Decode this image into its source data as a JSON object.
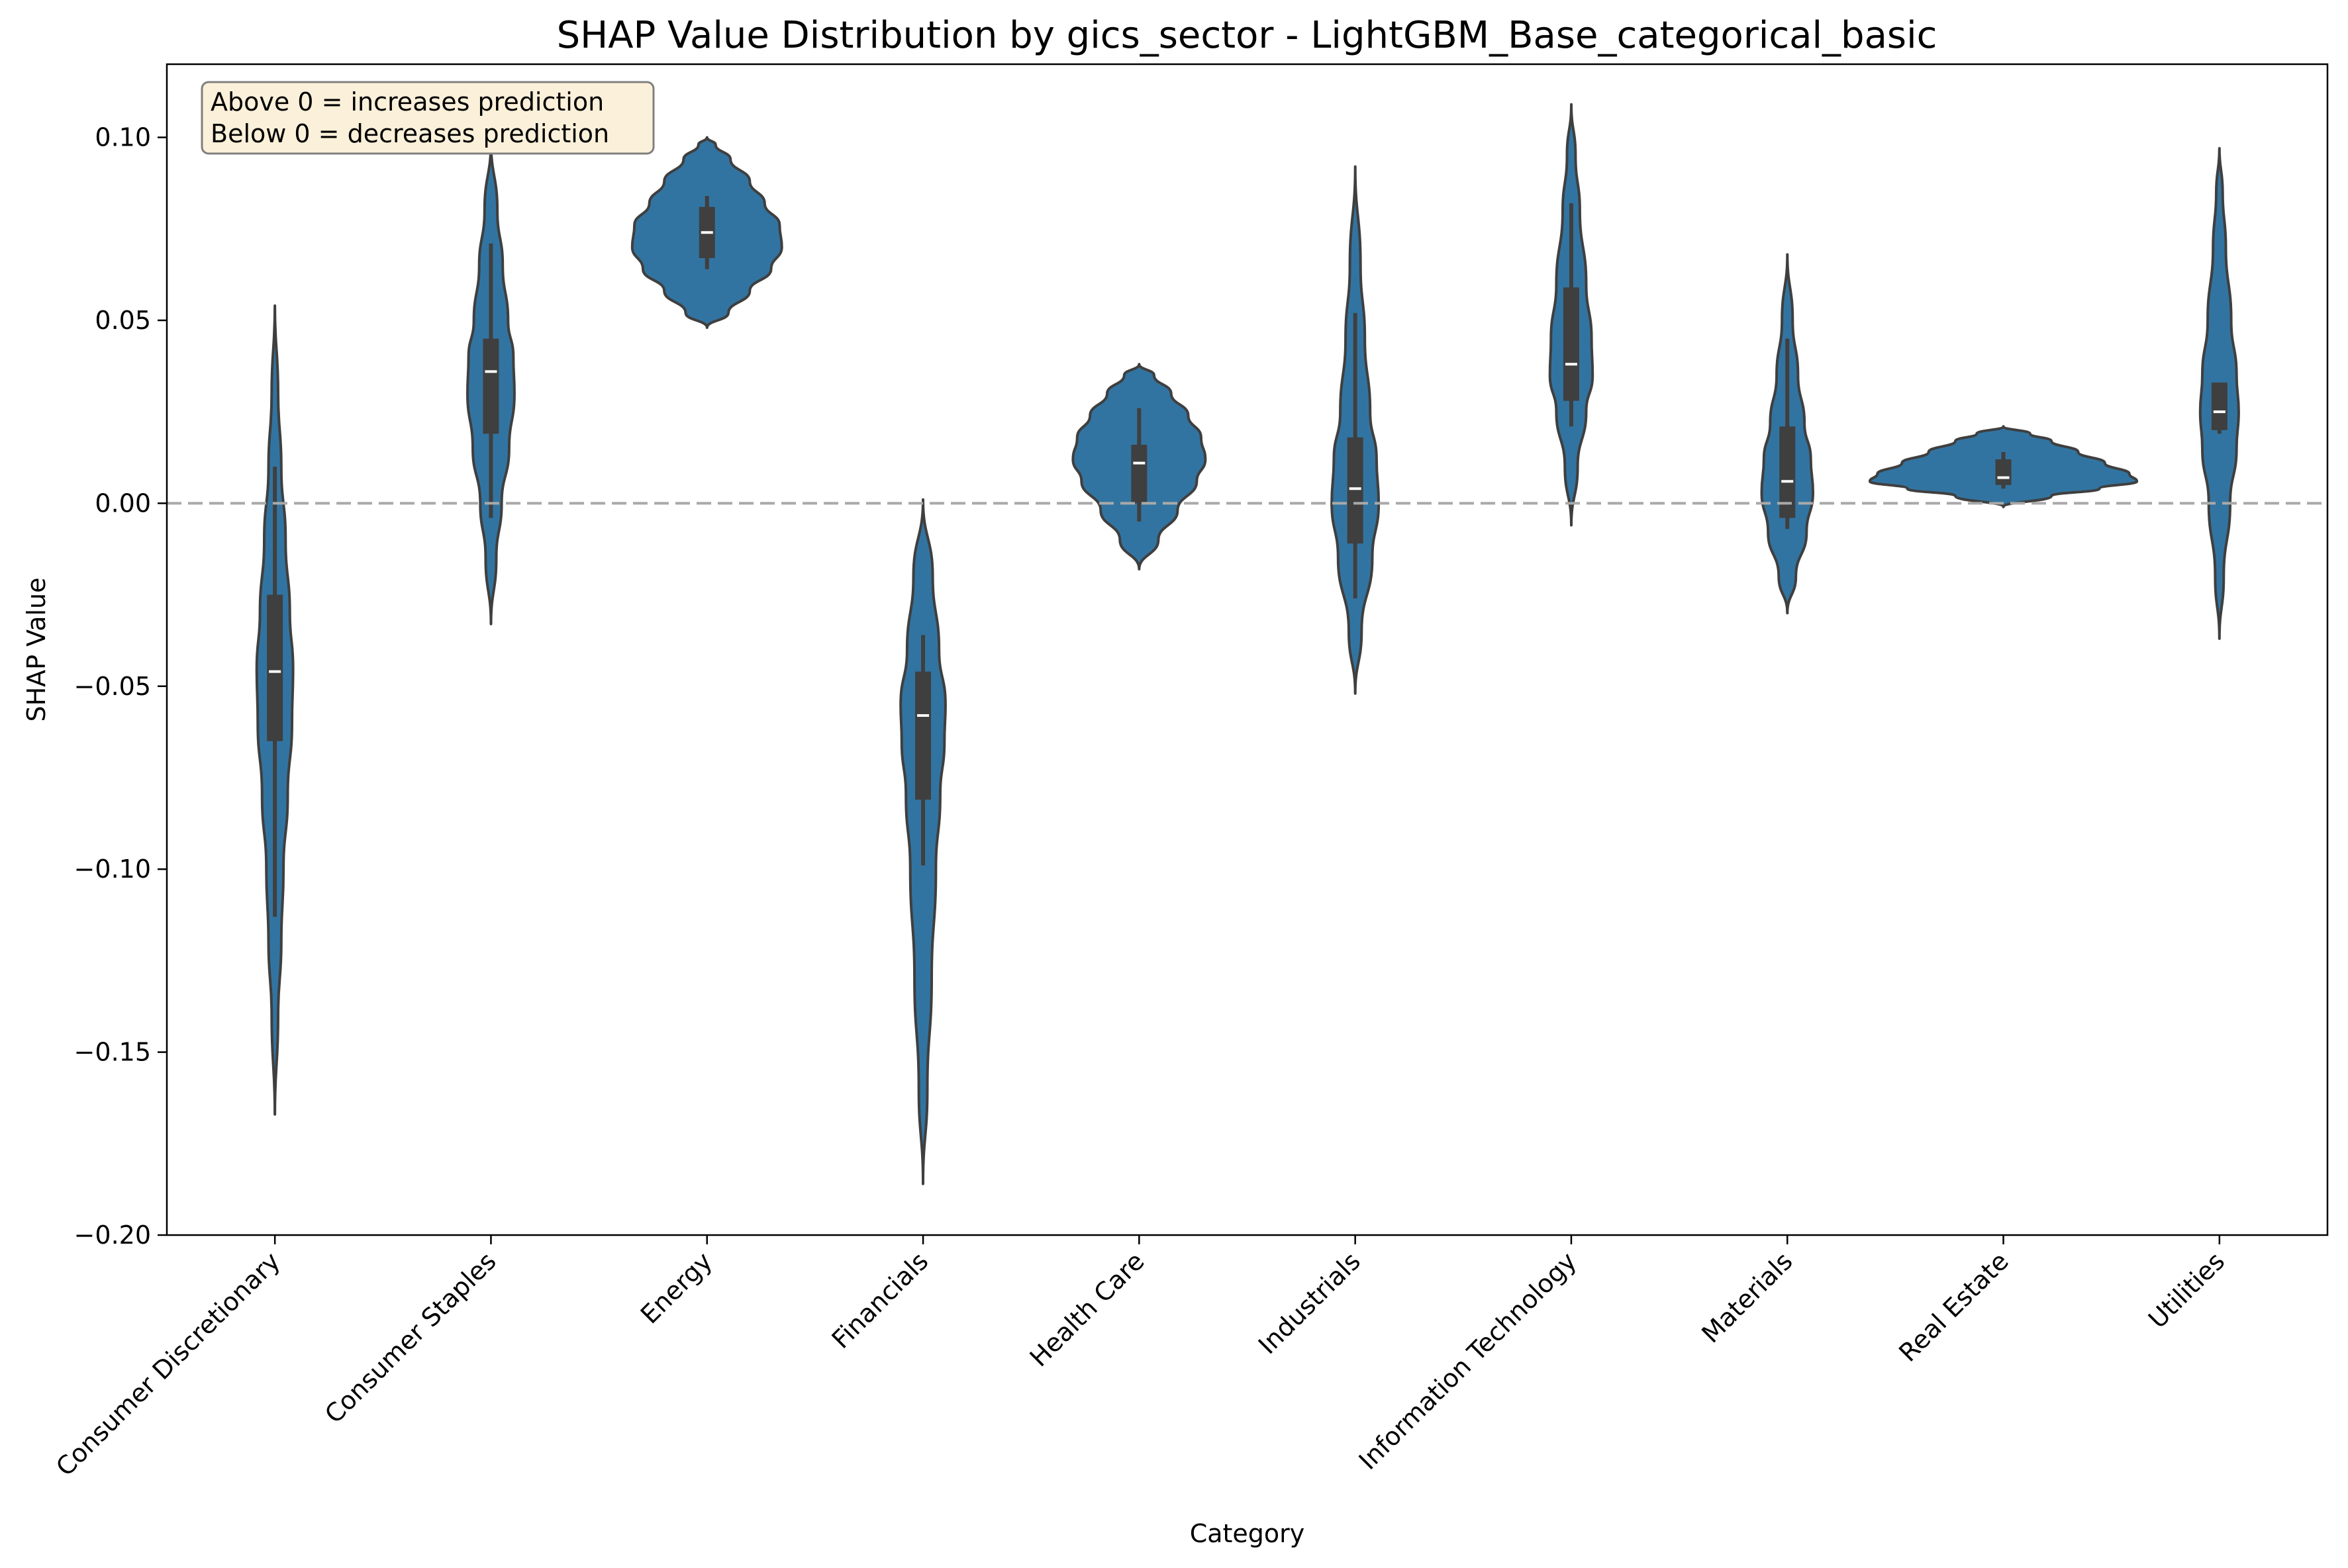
{
  "chart_data": {
    "type": "violin",
    "title": "SHAP Value Distribution by gics_sector - LightGBM_Base_categorical_basic",
    "xlabel": "Category",
    "ylabel": "SHAP Value",
    "ylim": [
      -0.2,
      0.12
    ],
    "yticks": [
      0.1,
      0.05,
      0.0,
      -0.05,
      -0.1,
      -0.15,
      -0.2
    ],
    "ytick_labels": [
      "0.10",
      "0.05",
      "0.00",
      "−0.05",
      "−0.10",
      "−0.15",
      "−0.20"
    ],
    "reference_line": 0.0,
    "grid": false,
    "colors": {
      "violin_fill": "#3274a1",
      "violin_edge": "#3f3f3f",
      "box": "#3f3f3f",
      "median": "#ffffff",
      "reference_line": "#a9a9a9",
      "annotation_bg": "#fbf0d9",
      "annotation_border": "#808080"
    },
    "annotation": {
      "lines": [
        "Above 0 = increases prediction",
        "Below 0 = decreases prediction"
      ],
      "location": "top-left"
    },
    "categories": [
      "Consumer Discretionary",
      "Consumer Staples",
      "Energy",
      "Financials",
      "Health Care",
      "Industrials",
      "Information Technology",
      "Materials",
      "Real Estate",
      "Utilities"
    ],
    "series": [
      {
        "category": "Consumer Discretionary",
        "min": -0.167,
        "max": 0.054,
        "whisker_low": -0.113,
        "whisker_high": 0.01,
        "q1": -0.065,
        "median": -0.046,
        "q3": -0.025,
        "density": [
          [
            -0.167,
            0.0
          ],
          [
            -0.14,
            0.003
          ],
          [
            -0.12,
            0.006
          ],
          [
            -0.1,
            0.008
          ],
          [
            -0.08,
            0.012
          ],
          [
            -0.06,
            0.016
          ],
          [
            -0.045,
            0.017
          ],
          [
            -0.03,
            0.014
          ],
          [
            -0.01,
            0.01
          ],
          [
            0.01,
            0.006
          ],
          [
            0.03,
            0.003
          ],
          [
            0.054,
            0.0
          ]
        ]
      },
      {
        "category": "Consumer Staples",
        "min": -0.033,
        "max": 0.099,
        "whisker_low": -0.004,
        "whisker_high": 0.071,
        "q1": 0.019,
        "median": 0.036,
        "q3": 0.045,
        "density": [
          [
            -0.033,
            0.0
          ],
          [
            -0.015,
            0.005
          ],
          [
            0.0,
            0.01
          ],
          [
            0.015,
            0.017
          ],
          [
            0.03,
            0.022
          ],
          [
            0.04,
            0.021
          ],
          [
            0.05,
            0.016
          ],
          [
            0.065,
            0.011
          ],
          [
            0.08,
            0.006
          ],
          [
            0.099,
            0.0
          ]
        ]
      },
      {
        "category": "Energy",
        "min": 0.048,
        "max": 0.1,
        "whisker_low": 0.064,
        "whisker_high": 0.084,
        "q1": 0.067,
        "median": 0.074,
        "q3": 0.081,
        "density": [
          [
            0.048,
            0.0
          ],
          [
            0.052,
            0.02
          ],
          [
            0.058,
            0.04
          ],
          [
            0.064,
            0.06
          ],
          [
            0.07,
            0.07
          ],
          [
            0.076,
            0.068
          ],
          [
            0.082,
            0.054
          ],
          [
            0.088,
            0.04
          ],
          [
            0.094,
            0.022
          ],
          [
            0.098,
            0.008
          ],
          [
            0.1,
            0.0
          ]
        ]
      },
      {
        "category": "Financials",
        "min": -0.186,
        "max": 0.001,
        "whisker_low": -0.099,
        "whisker_high": -0.036,
        "q1": -0.081,
        "median": -0.058,
        "q3": -0.046,
        "density": [
          [
            -0.186,
            0.0
          ],
          [
            -0.16,
            0.004
          ],
          [
            -0.13,
            0.008
          ],
          [
            -0.1,
            0.012
          ],
          [
            -0.08,
            0.016
          ],
          [
            -0.065,
            0.02
          ],
          [
            -0.055,
            0.021
          ],
          [
            -0.04,
            0.015
          ],
          [
            -0.02,
            0.009
          ],
          [
            0.001,
            0.0
          ]
        ]
      },
      {
        "category": "Health Care",
        "min": -0.018,
        "max": 0.038,
        "whisker_low": -0.005,
        "whisker_high": 0.026,
        "q1": 0.0,
        "median": 0.011,
        "q3": 0.016,
        "density": [
          [
            -0.018,
            0.0
          ],
          [
            -0.01,
            0.018
          ],
          [
            -0.002,
            0.036
          ],
          [
            0.006,
            0.054
          ],
          [
            0.012,
            0.062
          ],
          [
            0.018,
            0.058
          ],
          [
            0.024,
            0.046
          ],
          [
            0.03,
            0.03
          ],
          [
            0.035,
            0.014
          ],
          [
            0.038,
            0.0
          ]
        ]
      },
      {
        "category": "Industrials",
        "min": -0.052,
        "max": 0.092,
        "whisker_low": -0.026,
        "whisker_high": 0.052,
        "q1": -0.011,
        "median": 0.004,
        "q3": 0.018,
        "density": [
          [
            -0.052,
            0.0
          ],
          [
            -0.035,
            0.006
          ],
          [
            -0.015,
            0.016
          ],
          [
            0.0,
            0.022
          ],
          [
            0.012,
            0.02
          ],
          [
            0.025,
            0.014
          ],
          [
            0.045,
            0.009
          ],
          [
            0.065,
            0.005
          ],
          [
            0.092,
            0.0
          ]
        ]
      },
      {
        "category": "Information Technology",
        "min": -0.006,
        "max": 0.109,
        "whisker_low": 0.021,
        "whisker_high": 0.082,
        "q1": 0.028,
        "median": 0.038,
        "q3": 0.059,
        "density": [
          [
            -0.006,
            0.0
          ],
          [
            0.01,
            0.006
          ],
          [
            0.025,
            0.014
          ],
          [
            0.035,
            0.02
          ],
          [
            0.045,
            0.019
          ],
          [
            0.06,
            0.014
          ],
          [
            0.08,
            0.008
          ],
          [
            0.095,
            0.004
          ],
          [
            0.109,
            0.0
          ]
        ]
      },
      {
        "category": "Materials",
        "min": -0.03,
        "max": 0.068,
        "whisker_low": -0.007,
        "whisker_high": 0.045,
        "q1": -0.004,
        "median": 0.006,
        "q3": 0.021,
        "density": [
          [
            -0.03,
            0.0
          ],
          [
            -0.02,
            0.008
          ],
          [
            -0.008,
            0.018
          ],
          [
            0.003,
            0.024
          ],
          [
            0.012,
            0.022
          ],
          [
            0.022,
            0.016
          ],
          [
            0.035,
            0.01
          ],
          [
            0.05,
            0.005
          ],
          [
            0.068,
            0.0
          ]
        ]
      },
      {
        "category": "Real Estate",
        "min": -0.001,
        "max": 0.021,
        "whisker_low": 0.004,
        "whisker_high": 0.014,
        "q1": 0.005,
        "median": 0.007,
        "q3": 0.012,
        "density": [
          [
            -0.001,
            0.0
          ],
          [
            0.002,
            0.045
          ],
          [
            0.004,
            0.09
          ],
          [
            0.006,
            0.125
          ],
          [
            0.008,
            0.118
          ],
          [
            0.011,
            0.095
          ],
          [
            0.014,
            0.07
          ],
          [
            0.017,
            0.045
          ],
          [
            0.019,
            0.025
          ],
          [
            0.021,
            0.0
          ]
        ]
      },
      {
        "category": "Utilities",
        "min": -0.037,
        "max": 0.097,
        "whisker_low": 0.019,
        "whisker_high": 0.033,
        "q1": 0.02,
        "median": 0.025,
        "q3": 0.033,
        "density": [
          [
            -0.037,
            0.0
          ],
          [
            -0.02,
            0.004
          ],
          [
            0.0,
            0.01
          ],
          [
            0.015,
            0.016
          ],
          [
            0.025,
            0.018
          ],
          [
            0.035,
            0.016
          ],
          [
            0.05,
            0.011
          ],
          [
            0.07,
            0.006
          ],
          [
            0.085,
            0.003
          ],
          [
            0.097,
            0.0
          ]
        ]
      }
    ]
  }
}
